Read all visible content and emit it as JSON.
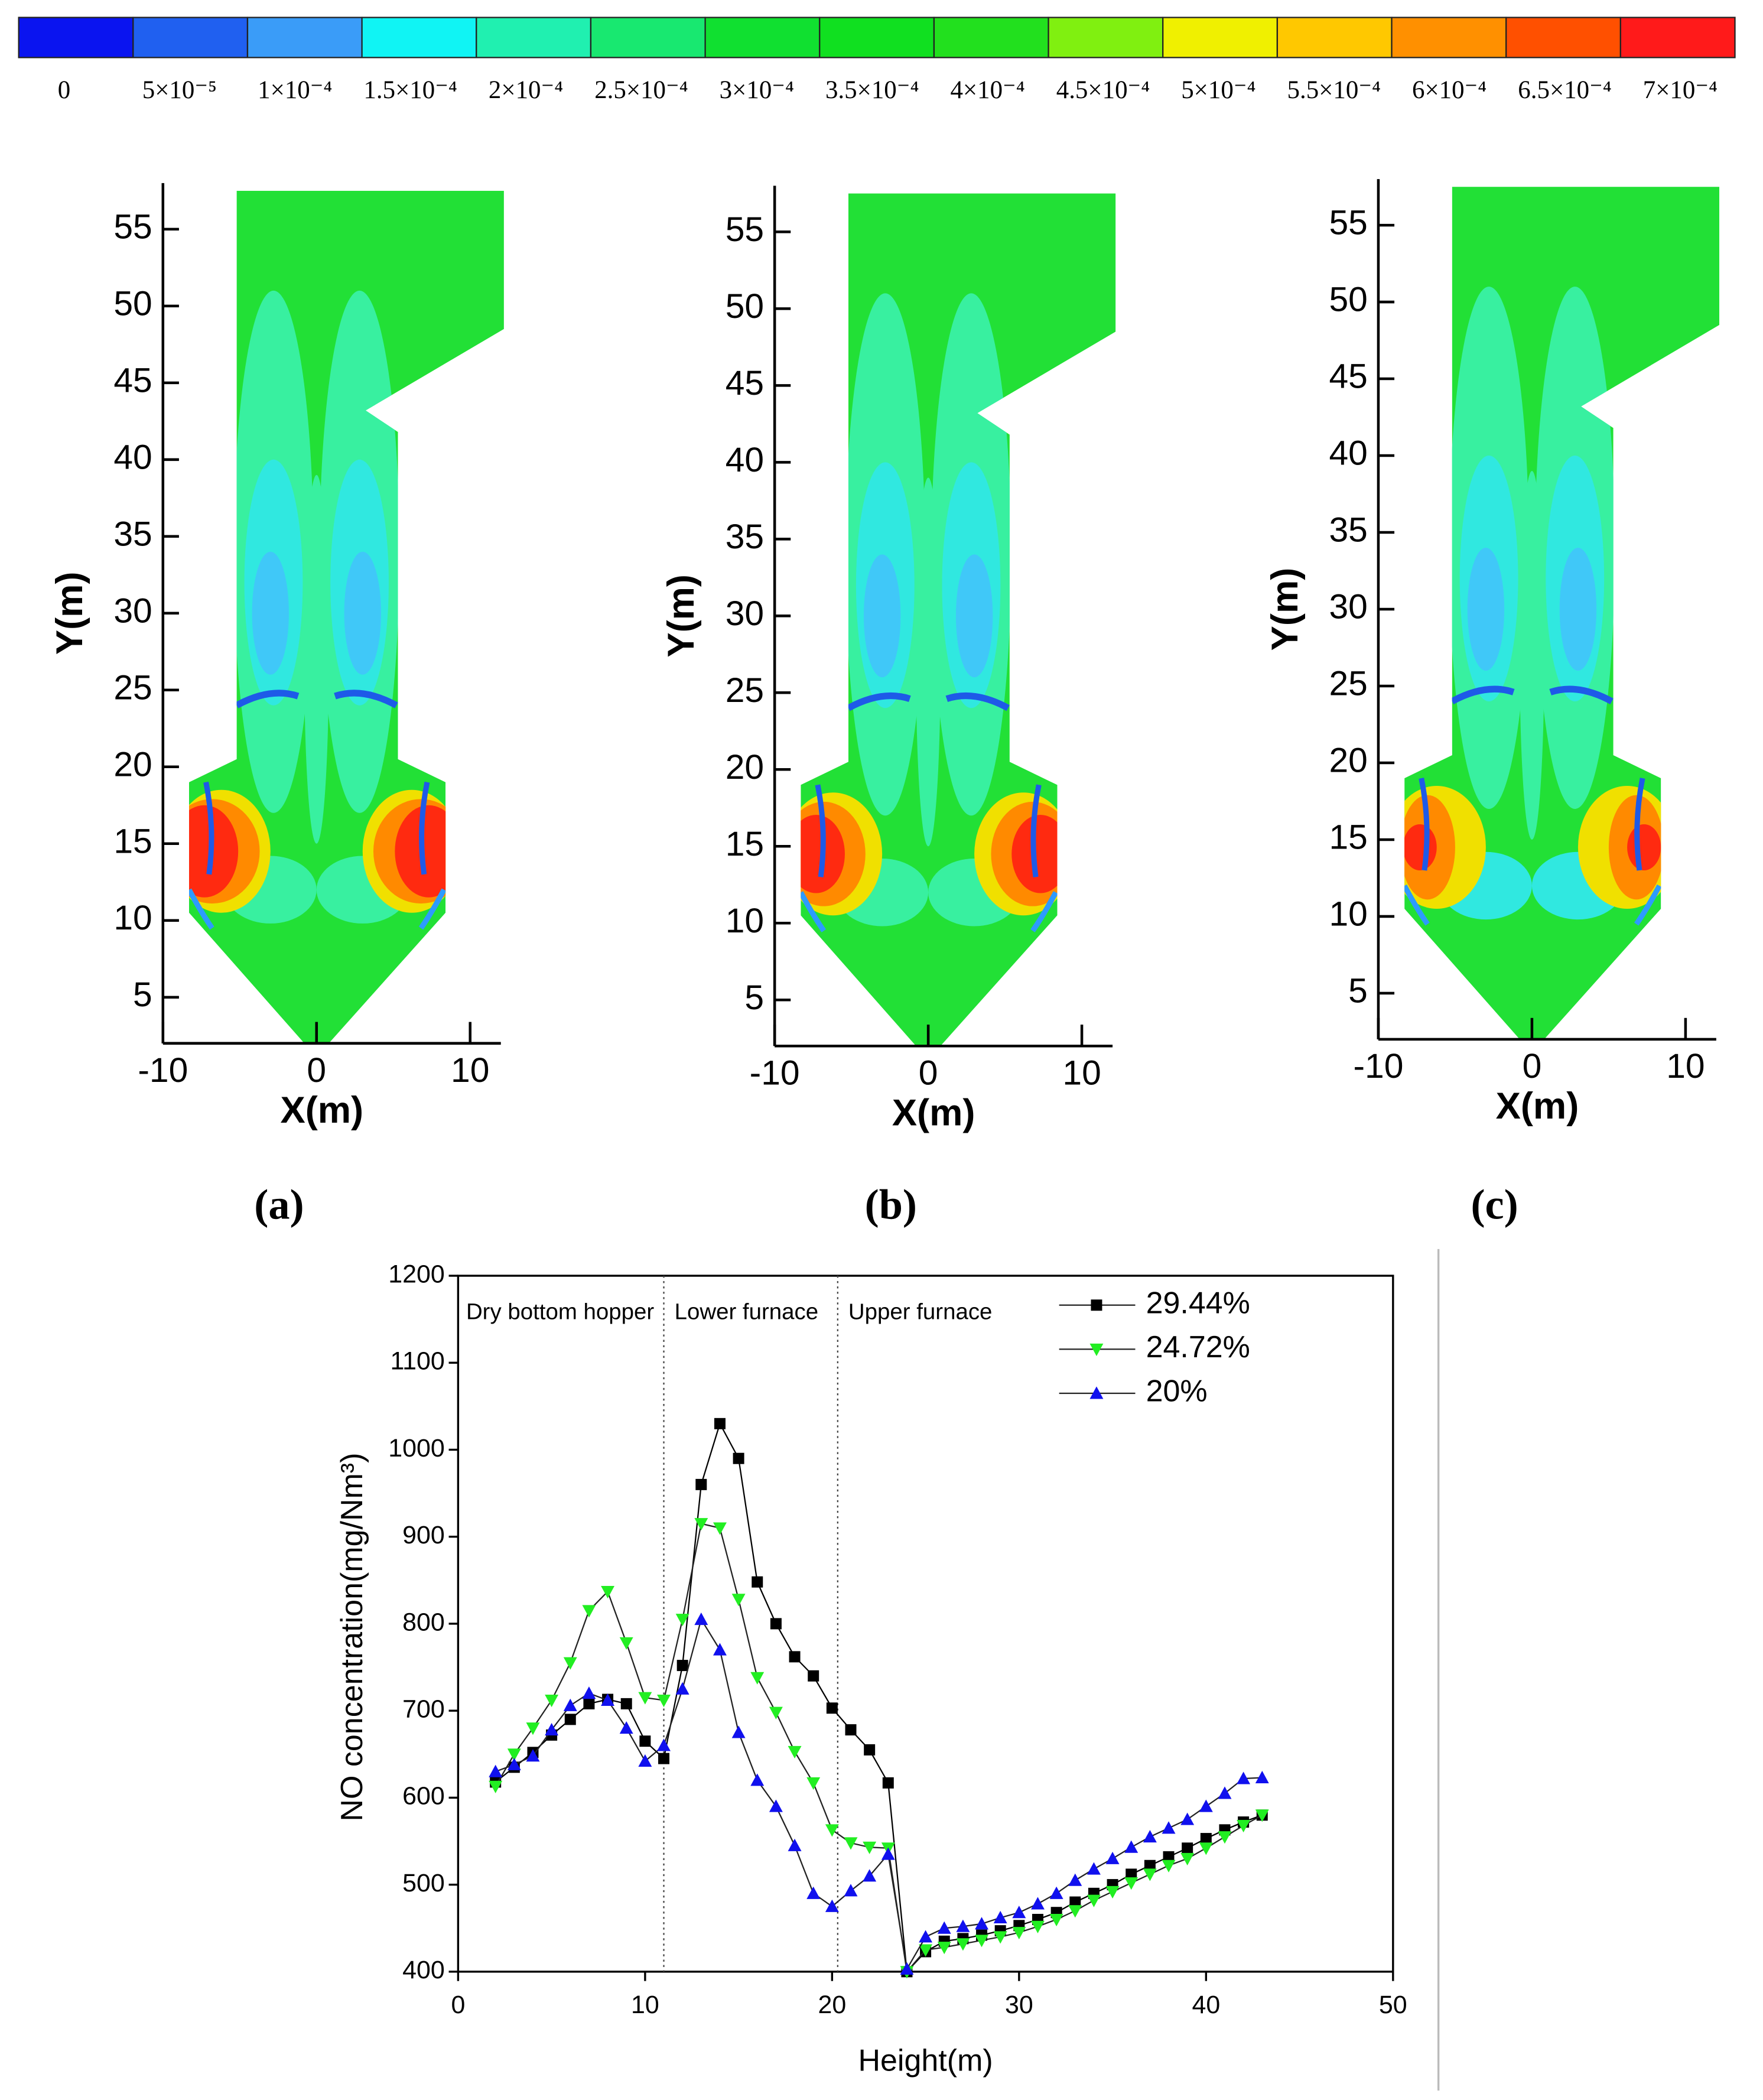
{
  "colorbar": {
    "colors": [
      "#0a14f0",
      "#2060f0",
      "#3a9cf8",
      "#10f4f4",
      "#20f0b0",
      "#18e870",
      "#10e030",
      "#10e020",
      "#22e01e",
      "#80f010",
      "#f0f000",
      "#ffc800",
      "#ff9000",
      "#ff5000",
      "#ff1a1a"
    ],
    "labels": [
      "0",
      "5×10⁻⁵",
      "1×10⁻⁴",
      "1.5×10⁻⁴",
      "2×10⁻⁴",
      "2.5×10⁻⁴",
      "3×10⁻⁴",
      "3.5×10⁻⁴",
      "4×10⁻⁴",
      "4.5×10⁻⁴",
      "5×10⁻⁴",
      "5.5×10⁻⁴",
      "6×10⁻⁴",
      "6.5×10⁻⁴",
      "7×10⁻⁴"
    ]
  },
  "panels": [
    {
      "label": "(a)",
      "xlabel": "X(m)",
      "ylabel": "Y(m)",
      "xlim": [
        -10,
        12
      ],
      "ylim": [
        2,
        58
      ],
      "xticks": [
        -10,
        0,
        10
      ],
      "yticks": [
        5,
        10,
        15,
        20,
        25,
        30,
        35,
        40,
        45,
        50,
        55
      ]
    },
    {
      "label": "(b)",
      "xlabel": "X(m)",
      "ylabel": "Y(m)",
      "xlim": [
        -10,
        12
      ],
      "ylim": [
        2,
        58
      ],
      "xticks": [
        -10,
        0,
        10
      ],
      "yticks": [
        5,
        10,
        15,
        20,
        25,
        30,
        35,
        40,
        45,
        50,
        55
      ]
    },
    {
      "label": "(c)",
      "xlabel": "X(m)",
      "ylabel": "Y(m)",
      "xlim": [
        -10,
        12
      ],
      "ylim": [
        2,
        58
      ],
      "xticks": [
        -10,
        0,
        10
      ],
      "yticks": [
        5,
        10,
        15,
        20,
        25,
        30,
        35,
        40,
        45,
        50,
        55
      ]
    }
  ],
  "chart_data": {
    "type": "line",
    "xlabel": "Height(m)",
    "ylabel": "NO concentration(mg/Nm³)",
    "x": [
      2,
      3,
      4,
      5,
      6,
      7,
      8,
      9,
      10,
      11,
      12,
      13,
      14,
      15,
      16,
      17,
      18,
      19,
      20,
      21,
      22,
      23,
      24,
      25,
      26,
      27,
      28,
      29,
      30,
      31,
      32,
      33,
      34,
      35,
      36,
      37,
      38,
      39,
      40,
      41,
      42,
      43
    ],
    "series": [
      {
        "name": "29.44%",
        "color": "#000000",
        "marker": "square",
        "values": [
          618,
          635,
          652,
          672,
          690,
          708,
          713,
          708,
          665,
          645,
          752,
          960,
          1030,
          990,
          848,
          800,
          762,
          740,
          703,
          678,
          655,
          617,
          400,
          423,
          435,
          438,
          442,
          447,
          453,
          460,
          468,
          480,
          490,
          500,
          512,
          522,
          532,
          542,
          553,
          563,
          572,
          580
        ]
      },
      {
        "name": "24.72%",
        "color": "#22ee22",
        "marker": "triangle-down",
        "values": [
          613,
          650,
          680,
          712,
          755,
          815,
          837,
          778,
          715,
          712,
          805,
          915,
          910,
          828,
          738,
          698,
          653,
          617,
          563,
          548,
          543,
          542,
          400,
          425,
          428,
          432,
          436,
          440,
          445,
          452,
          460,
          470,
          482,
          492,
          502,
          512,
          522,
          530,
          542,
          555,
          568,
          580
        ]
      },
      {
        "name": "20%",
        "color": "#1010ee",
        "marker": "triangle-up",
        "values": [
          630,
          638,
          648,
          678,
          706,
          720,
          712,
          680,
          642,
          660,
          725,
          805,
          770,
          675,
          620,
          590,
          545,
          490,
          475,
          493,
          510,
          535,
          403,
          440,
          450,
          452,
          455,
          462,
          468,
          478,
          490,
          505,
          518,
          530,
          543,
          555,
          565,
          575,
          590,
          605,
          622,
          623
        ]
      }
    ],
    "xlim": [
      0,
      50
    ],
    "ylim": [
      400,
      1200
    ],
    "xticks": [
      0,
      10,
      20,
      30,
      40,
      50
    ],
    "yticks": [
      400,
      500,
      600,
      700,
      800,
      900,
      1000,
      1100,
      1200
    ],
    "regions": [
      "Dry bottom hopper",
      "Lower furnace",
      "Upper furnace"
    ],
    "dividers": [
      11,
      20.3
    ],
    "legend": "upper right"
  }
}
